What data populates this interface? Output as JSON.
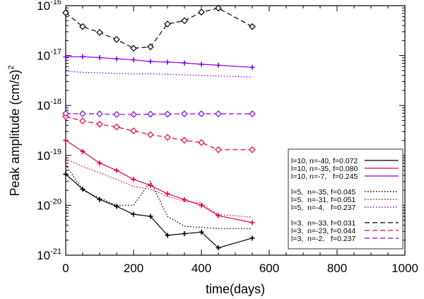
{
  "chart_data": {
    "type": "line",
    "title": "",
    "xlabel": "time(days)",
    "ylabel": "Peak amplitude (cm/s)",
    "ylabel_exponent": "2",
    "yscale": "log",
    "xlim": [
      0,
      1000
    ],
    "ylim": [
      1e-21,
      1e-16
    ],
    "xticks": [
      0,
      200,
      400,
      600,
      800,
      1000
    ],
    "xtick_labels": [
      "0",
      "200",
      "400",
      "600",
      "800",
      "1000"
    ],
    "yticks": [
      {
        "mantissa": "10",
        "exponent": "-16",
        "value": 1e-16
      },
      {
        "mantissa": "10",
        "exponent": "-17",
        "value": 1e-17
      },
      {
        "mantissa": "10",
        "exponent": "-18",
        "value": 1e-18
      },
      {
        "mantissa": "10",
        "exponent": "-19",
        "value": 1e-19
      },
      {
        "mantissa": "10",
        "exponent": "-20",
        "value": 1e-20
      },
      {
        "mantissa": "10",
        "exponent": "-21",
        "value": 1e-21
      }
    ],
    "legend_position": "bottom-right",
    "series": [
      {
        "name": "l=10, n=-40, f=0.072",
        "color": "#000000",
        "dash": "solid",
        "marker": "plus",
        "x": [
          0,
          50,
          100,
          150,
          200,
          250,
          300,
          350,
          400,
          450,
          550
        ],
        "y": [
          4.2e-20,
          2.1e-20,
          1.3e-20,
          9.5e-21,
          6.6e-21,
          6e-21,
          2.5e-21,
          2.7e-21,
          2.9e-21,
          1.4e-21,
          2.2e-21
        ]
      },
      {
        "name": "l=10, n=-35, f=0.080",
        "color": "#e8003c",
        "dash": "solid",
        "marker": "plus",
        "x": [
          0,
          50,
          100,
          150,
          200,
          250,
          300,
          350,
          400,
          450,
          550
        ],
        "y": [
          2e-19,
          1.2e-19,
          7e-20,
          5e-20,
          3.3e-20,
          2.5e-20,
          1.7e-20,
          1.3e-20,
          1e-20,
          6.2e-21,
          4.5e-21
        ]
      },
      {
        "name": "l=10, n=-7,   f=0.245",
        "color": "#8a00e6",
        "dash": "solid",
        "marker": "plus",
        "x": [
          0,
          50,
          100,
          150,
          200,
          250,
          300,
          350,
          400,
          450,
          550
        ],
        "y": [
          9.4e-18,
          9.5e-18,
          9.1e-18,
          8.6e-18,
          8.2e-18,
          7.6e-18,
          7.4e-18,
          7.1e-18,
          6.7e-18,
          6.4e-18,
          5.8e-18
        ]
      },
      {
        "name": "l=5,  n=-35, f=0.045",
        "color": "#000000",
        "dash": "dotted",
        "marker": "none",
        "x": [
          0,
          50,
          100,
          150,
          200,
          250,
          300,
          350,
          400,
          450,
          550
        ],
        "y": [
          6.5e-20,
          2e-20,
          1.4e-20,
          1e-20,
          1e-20,
          3e-20,
          6e-21,
          3.8e-21,
          3.6e-21,
          3.4e-21,
          3.4e-21
        ]
      },
      {
        "name": "l=5,  n=-31, f=0.051",
        "color": "#e8003c",
        "dash": "dotted",
        "marker": "none",
        "x": [
          0,
          50,
          100,
          150,
          200,
          250,
          300,
          350,
          400,
          450,
          550
        ],
        "y": [
          8.5e-20,
          6e-20,
          4.5e-20,
          3.3e-20,
          2.4e-20,
          2.1e-20,
          1.5e-20,
          1.2e-20,
          1.1e-20,
          6.5e-21,
          5.8e-21
        ]
      },
      {
        "name": "l=5,  n=-4,   f=0.237",
        "color": "#8a00e6",
        "dash": "dotted",
        "marker": "none",
        "x": [
          0,
          50,
          100,
          150,
          200,
          250,
          300,
          350,
          400,
          450,
          550
        ],
        "y": [
          4.9e-18,
          4.6e-18,
          4.5e-18,
          4.4e-18,
          4.3e-18,
          4.3e-18,
          4.2e-18,
          4.1e-18,
          4e-18,
          3.9e-18,
          3.7e-18
        ]
      },
      {
        "name": "l=3,  n=-33, f=0.031",
        "color": "#000000",
        "dash": "dashed",
        "marker": "diamond",
        "x": [
          0,
          50,
          100,
          150,
          200,
          250,
          300,
          350,
          400,
          450,
          550
        ],
        "y": [
          7.2e-17,
          3.8e-17,
          2.9e-17,
          2.1e-17,
          1.4e-17,
          1.5e-17,
          4.3e-17,
          5e-17,
          7.4e-17,
          8.9e-17,
          3.8e-17
        ]
      },
      {
        "name": "l=3,  n=-23, f=0.044",
        "color": "#e8003c",
        "dash": "dashed",
        "marker": "diamond",
        "x": [
          0,
          50,
          100,
          150,
          200,
          250,
          300,
          350,
          400,
          450,
          550
        ],
        "y": [
          6e-19,
          4.9e-19,
          4.2e-19,
          3.7e-19,
          3.1e-19,
          2.6e-19,
          2.3e-19,
          2e-19,
          1.8e-19,
          1.3e-19,
          1.3e-19
        ]
      },
      {
        "name": "l=3,  n=-2,   f=0.237",
        "color": "#8a00e6",
        "dash": "dashed",
        "marker": "diamond",
        "x": [
          0,
          50,
          100,
          150,
          200,
          250,
          300,
          350,
          400,
          450,
          550
        ],
        "y": [
          6.9e-19,
          6.8e-19,
          6.8e-19,
          6.6e-19,
          6.6e-19,
          6.7e-19,
          6.7e-19,
          6.8e-19,
          6.8e-19,
          6.8e-19,
          6.8e-19
        ]
      }
    ]
  }
}
